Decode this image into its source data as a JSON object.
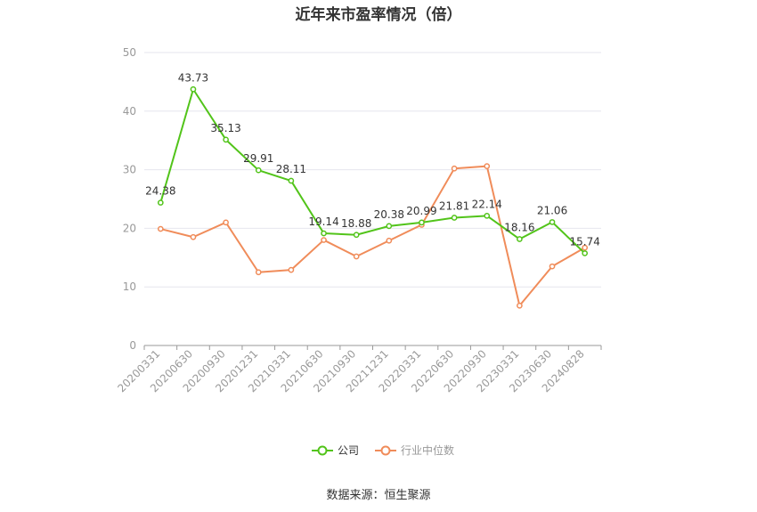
{
  "title": "近年来市盈率情况（倍）",
  "source": "数据来源：恒生聚源",
  "colors": {
    "company": "#52c41a",
    "industry": "#f08c5a",
    "axis": "#999999",
    "grid": "#e6e6ee"
  },
  "chart_data": {
    "type": "line",
    "title": "近年来市盈率情况（倍）",
    "categories": [
      "20200331",
      "20200630",
      "20200930",
      "20201231",
      "20210331",
      "20210630",
      "20210930",
      "20211231",
      "20220331",
      "20220630",
      "20220930",
      "20230331",
      "20230630",
      "20240828"
    ],
    "ylim": [
      0,
      50
    ],
    "yticks": [
      0,
      10,
      20,
      30,
      40,
      50
    ],
    "grid": true,
    "legend_position": "bottom",
    "series": [
      {
        "name": "公司",
        "color": "#52c41a",
        "show_labels": true,
        "values": [
          24.38,
          43.73,
          35.13,
          29.91,
          28.11,
          19.14,
          18.88,
          20.38,
          20.99,
          21.81,
          22.14,
          18.16,
          21.06,
          15.74
        ]
      },
      {
        "name": "行业中位数",
        "color": "#f08c5a",
        "show_labels": false,
        "values": [
          19.9,
          18.5,
          21.0,
          12.5,
          12.9,
          18.0,
          15.2,
          17.9,
          20.6,
          30.2,
          30.6,
          6.8,
          13.5,
          16.7
        ]
      }
    ]
  }
}
